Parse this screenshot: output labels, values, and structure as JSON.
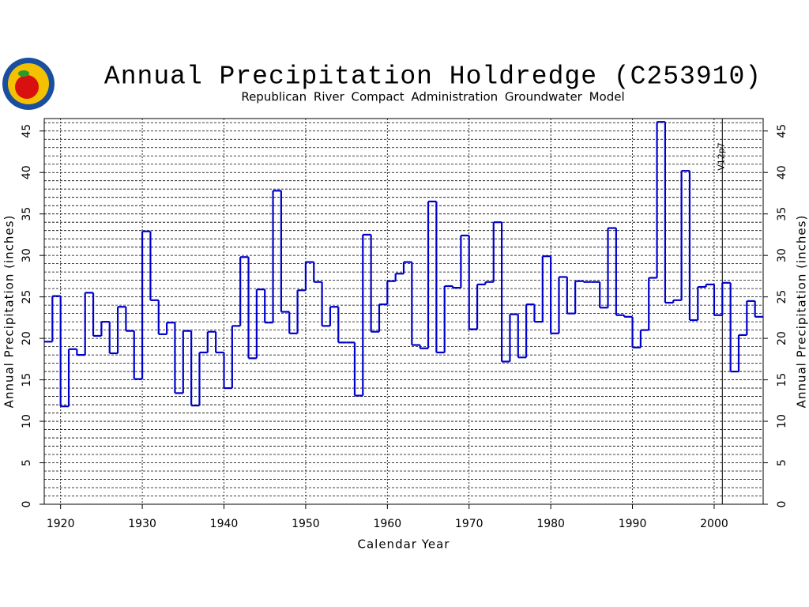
{
  "chart_data": {
    "type": "step",
    "title": "Annual Precipitation Holdredge (C253910)",
    "subtitle": "Republican River Compact Administration Groundwater Model",
    "xlabel": "Calendar Year",
    "ylabel": "Annual Precipitation (inches)",
    "y2label": "Annual Precipitation (inches)",
    "x": [
      1918,
      1919,
      1920,
      1921,
      1922,
      1923,
      1924,
      1925,
      1926,
      1927,
      1928,
      1929,
      1930,
      1931,
      1932,
      1933,
      1934,
      1935,
      1936,
      1937,
      1938,
      1939,
      1940,
      1941,
      1942,
      1943,
      1944,
      1945,
      1946,
      1947,
      1948,
      1949,
      1950,
      1951,
      1952,
      1953,
      1954,
      1955,
      1956,
      1957,
      1958,
      1959,
      1960,
      1961,
      1962,
      1963,
      1964,
      1965,
      1966,
      1967,
      1968,
      1969,
      1970,
      1971,
      1972,
      1973,
      1974,
      1975,
      1976,
      1977,
      1978,
      1979,
      1980,
      1981,
      1982,
      1983,
      1984,
      1985,
      1986,
      1987,
      1988,
      1989,
      1990,
      1991,
      1992,
      1993,
      1994,
      1995,
      1996,
      1997,
      1998,
      1999,
      2000,
      2001,
      2002,
      2003,
      2004,
      2005
    ],
    "series": [
      {
        "name": "Annual Precipitation",
        "color": "#0000cc",
        "values": [
          19.6,
          25.1,
          11.8,
          18.7,
          18.0,
          25.5,
          20.3,
          22.0,
          18.2,
          23.8,
          20.9,
          15.1,
          32.9,
          24.6,
          20.5,
          21.9,
          13.4,
          20.9,
          11.9,
          18.3,
          20.8,
          18.3,
          14.0,
          21.5,
          29.8,
          17.6,
          25.9,
          21.9,
          37.8,
          23.2,
          20.6,
          25.8,
          29.2,
          26.8,
          21.5,
          23.8,
          19.5,
          19.5,
          13.1,
          32.5,
          20.8,
          24.1,
          26.9,
          27.8,
          29.2,
          19.2,
          18.8,
          36.5,
          18.3,
          26.3,
          26.1,
          32.4,
          21.1,
          26.5,
          26.8,
          34.0,
          17.2,
          22.9,
          17.7,
          24.1,
          22.0,
          29.9,
          20.6,
          27.4,
          23.0,
          26.9,
          26.8,
          26.8,
          23.7,
          33.3,
          22.8,
          22.6,
          18.9,
          21.0,
          27.3,
          46.1,
          24.3,
          24.6,
          40.2,
          22.2,
          26.2,
          26.5,
          22.8,
          26.7,
          16.0,
          20.4,
          24.5,
          22.6
        ]
      }
    ],
    "xlim": [
      1918,
      2006
    ],
    "xticks": [
      1920,
      1930,
      1940,
      1950,
      1960,
      1970,
      1980,
      1990,
      2000
    ],
    "ylim": [
      0,
      46.5
    ],
    "yticks": [
      0,
      5,
      10,
      15,
      20,
      25,
      30,
      35,
      40,
      45
    ],
    "y2lim": [
      0,
      46.5
    ],
    "y2ticks": [
      0,
      5,
      10,
      15,
      20,
      25,
      30,
      35,
      40,
      45
    ],
    "y_minor_grid": [
      1,
      2,
      3,
      4,
      6,
      7,
      8,
      9,
      11,
      12,
      13,
      14,
      16,
      17,
      18,
      19,
      21,
      22,
      23,
      24,
      26,
      27,
      28,
      29,
      31,
      32,
      33,
      34,
      36,
      37,
      38,
      39,
      41,
      42,
      43,
      44,
      46
    ],
    "grid": true,
    "annotations": [
      {
        "text": "V12p7",
        "x": 2001
      }
    ]
  }
}
